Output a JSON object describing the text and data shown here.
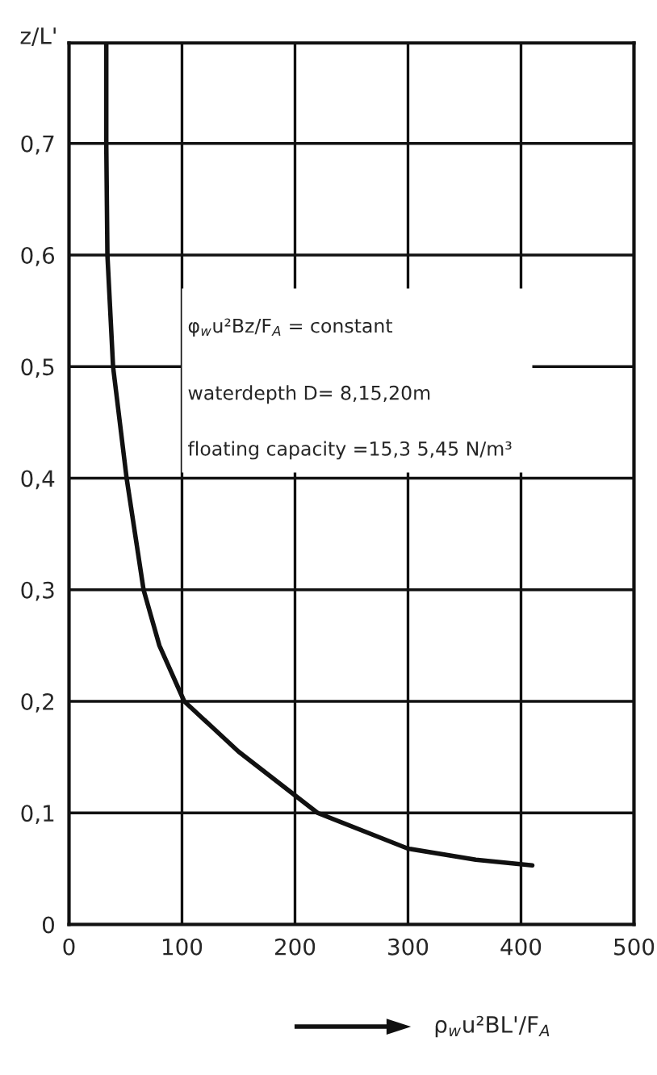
{
  "chart_data": {
    "type": "line",
    "ylabel": "z/L'",
    "xlabel": "ρ$_{w}$u²BL'/F$_{A}$",
    "annotations": [
      "φ$_{w}$u²Bz/F$_{A}$ = constant",
      "waterdepth D= 8,15,20m",
      "floating capacity =15,3 5,45 N/m³"
    ],
    "x": [
      33,
      33,
      34,
      39,
      51,
      66,
      80,
      102,
      150,
      220,
      300,
      360,
      410
    ],
    "series": [
      {
        "color": "#111111",
        "values": [
          0.79,
          0.7,
          0.6,
          0.5,
          0.4,
          0.3,
          0.25,
          0.2,
          0.155,
          0.1,
          0.068,
          0.058,
          0.053
        ]
      }
    ],
    "xlim": [
      0,
      500
    ],
    "ylim": [
      0,
      0.79
    ],
    "xticks": [
      0,
      100,
      200,
      300,
      400,
      500
    ],
    "yticks": [
      {
        "value": 0,
        "label": "0"
      },
      {
        "value": 0.1,
        "label": "0,1"
      },
      {
        "value": 0.2,
        "label": "0,2"
      },
      {
        "value": 0.3,
        "label": "0,3"
      },
      {
        "value": 0.4,
        "label": "0,4"
      },
      {
        "value": 0.5,
        "label": "0,5"
      },
      {
        "value": 0.6,
        "label": "0,6"
      },
      {
        "value": 0.7,
        "label": "0,7"
      }
    ],
    "grid": true,
    "marker": "none",
    "line_style": "solid"
  }
}
